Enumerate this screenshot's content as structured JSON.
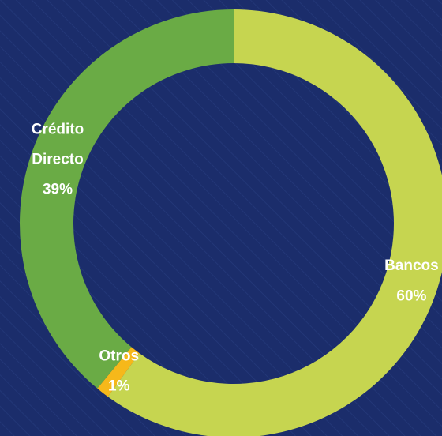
{
  "chart_data": {
    "type": "donut",
    "categories": [
      "Bancos",
      "Otros",
      "Crédito Directo"
    ],
    "values": [
      60,
      1,
      39
    ],
    "value_labels": [
      "60%",
      "1%",
      "39%"
    ],
    "colors": [
      "#c6d550",
      "#f6b81a",
      "#6aab45"
    ]
  }
}
